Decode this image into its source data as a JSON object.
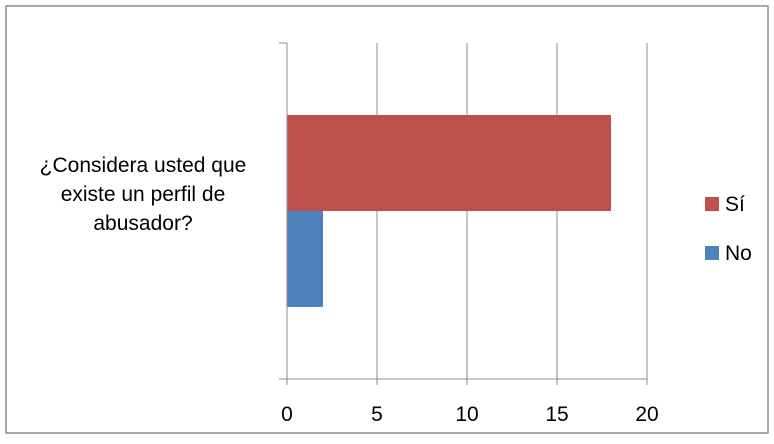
{
  "chart_data": {
    "type": "bar",
    "orientation": "horizontal",
    "categories": [
      "¿Considera usted que existe un perfil de abusador?"
    ],
    "category_label_lines": [
      "¿Considera usted que",
      "existe un perfil de",
      "abusador?"
    ],
    "series": [
      {
        "name": "Sí",
        "values": [
          18
        ],
        "color": "#c0504d"
      },
      {
        "name": "No",
        "values": [
          2
        ],
        "color": "#4f81bd"
      }
    ],
    "xlim": [
      0,
      20
    ],
    "x_ticks": [
      "0",
      "5",
      "10",
      "15",
      "20"
    ],
    "grid": "vertical",
    "legend_placement": "right",
    "title": "",
    "xlabel": "",
    "ylabel": ""
  }
}
